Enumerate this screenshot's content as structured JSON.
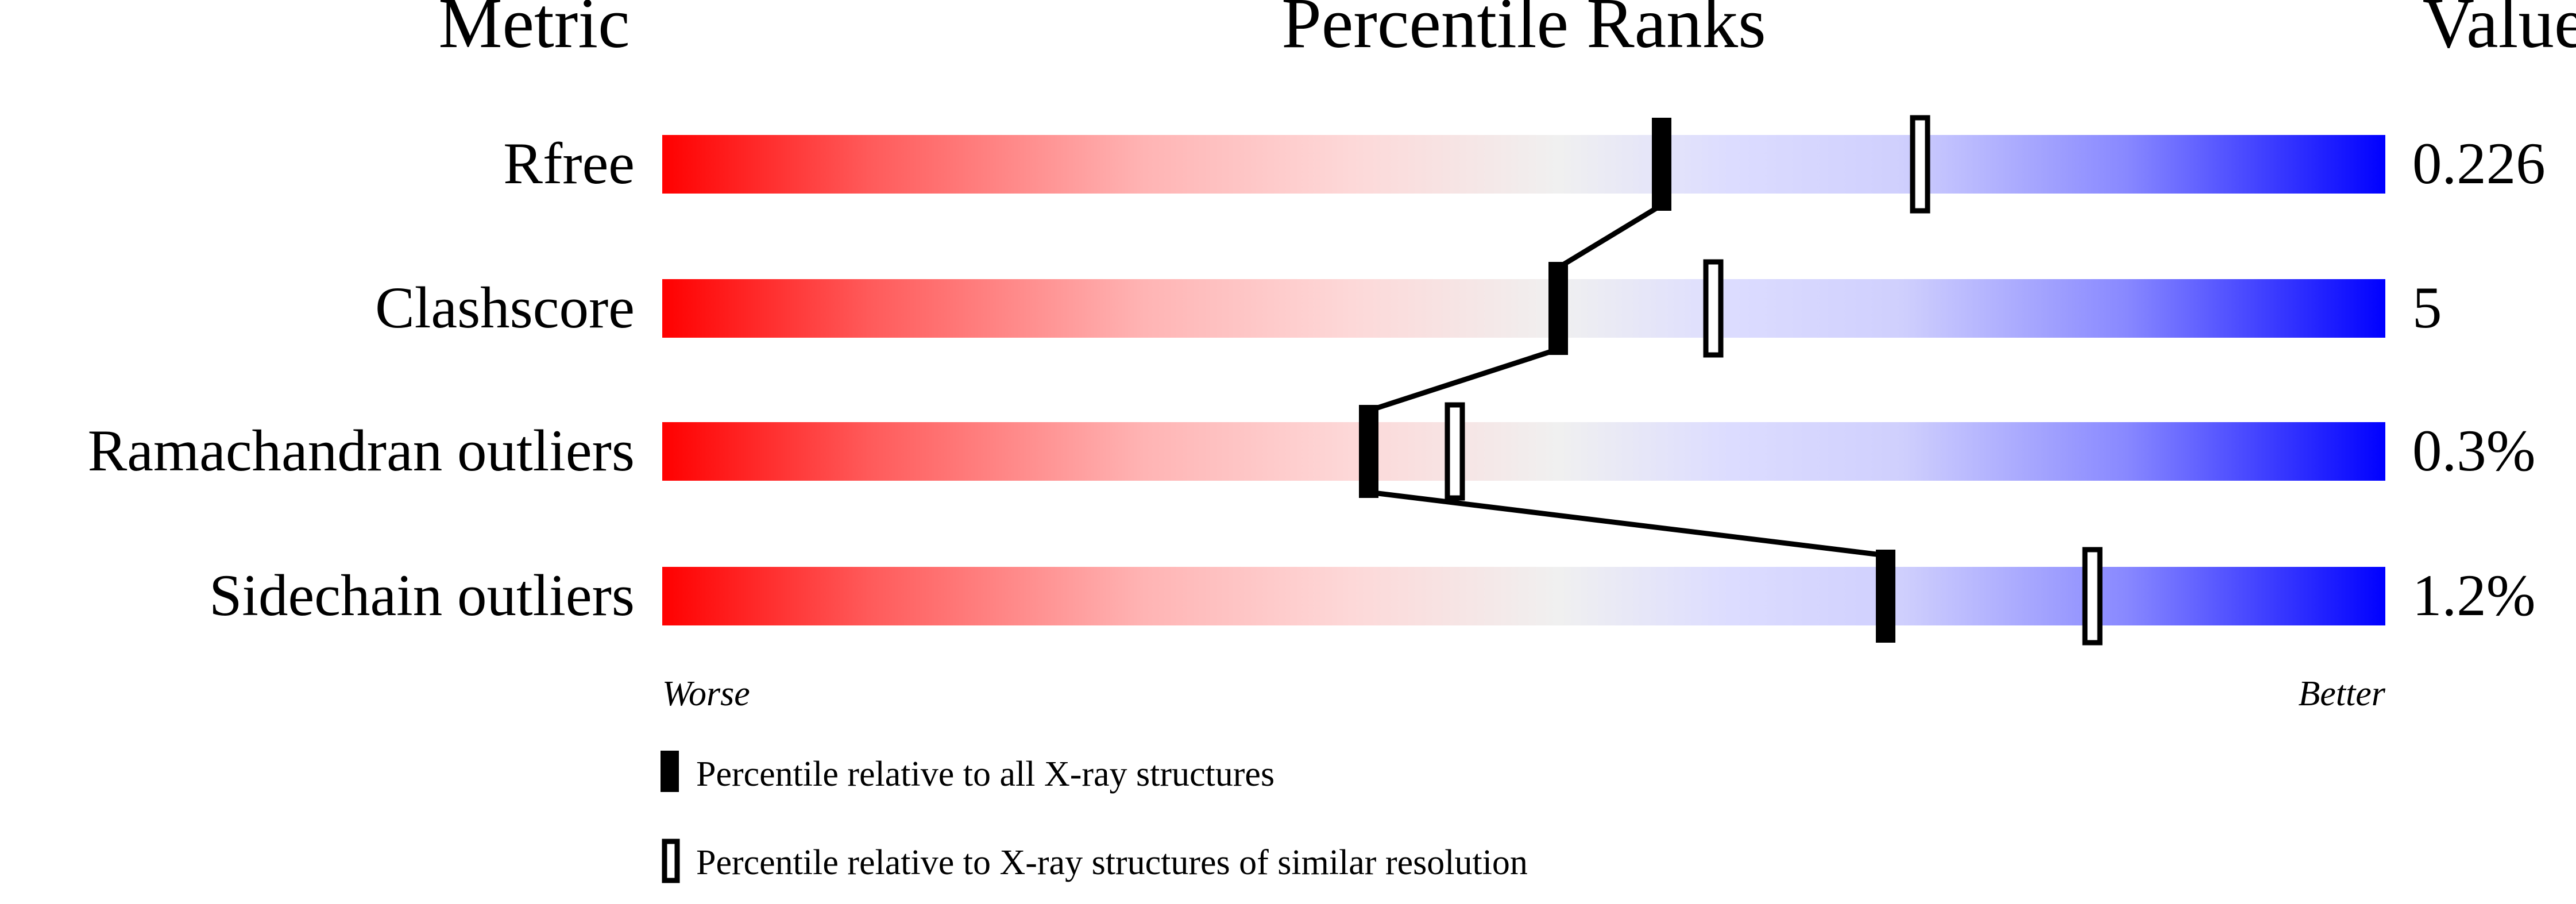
{
  "chart_data": {
    "type": "bar",
    "headers": {
      "metric": "Metric",
      "ranks": "Percentile Ranks",
      "value": "Value"
    },
    "scale": {
      "min": 0,
      "max": 100,
      "left_label": "Worse",
      "right_label": "Better"
    },
    "gradient_colors": {
      "worse": "#ff0000",
      "middle": "#f0f0f0",
      "better": "#0000ff"
    },
    "metrics": [
      {
        "name": "Rfree",
        "value": "0.226",
        "percentile_all": 58,
        "percentile_similar": 73
      },
      {
        "name": "Clashscore",
        "value": "5",
        "percentile_all": 52,
        "percentile_similar": 61
      },
      {
        "name": "Ramachandran outliers",
        "value": "0.3%",
        "percentile_all": 41,
        "percentile_similar": 46
      },
      {
        "name": "Sidechain outliers",
        "value": "1.2%",
        "percentile_all": 71,
        "percentile_similar": 83
      }
    ],
    "legend": [
      {
        "marker": "filled",
        "label": "Percentile relative to all X-ray structures"
      },
      {
        "marker": "hollow",
        "label": "Percentile relative to X-ray structures of similar resolution"
      }
    ]
  }
}
